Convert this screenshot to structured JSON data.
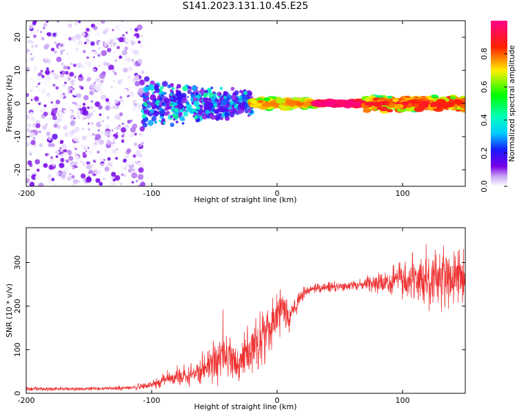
{
  "title": "S141.2023.131.10.45.E25",
  "colors": {
    "frame": "#000000",
    "snr_line": "#ee3333",
    "background": "#ffffff"
  },
  "chart_data": [
    {
      "type": "heatmap",
      "xlabel": "Height of straight line (km)",
      "ylabel": "Frequency (Hz)",
      "xlim": [
        -200,
        150
      ],
      "ylim": [
        -25,
        25
      ],
      "x_ticks": [
        "-200",
        "-100",
        "0",
        "100"
      ],
      "y_ticks": [
        "20",
        "10",
        "0",
        "-10",
        "-20"
      ],
      "colorbar": {
        "label": "Normalized spectral amplitude",
        "range": [
          0,
          1
        ],
        "ticks": [
          "0.0",
          "0.2",
          "0.4",
          "0.6",
          "0.8"
        ],
        "colormap": "rainbow (white, purple, blue, cyan, green, yellow, red, magenta)"
      },
      "regions": [
        {
          "x_range": [
            -200,
            -107
          ],
          "freq_range": [
            -25,
            25
          ],
          "amplitude": [
            0.0,
            0.15
          ],
          "pattern": "broadband speckle"
        },
        {
          "x_range": [
            -107,
            -20
          ],
          "freq_range": [
            -8,
            8
          ],
          "amplitude": [
            0.1,
            0.45
          ],
          "pattern": "clustered blobs narrowing toward 0 Hz"
        },
        {
          "x_range": [
            -20,
            30
          ],
          "freq_range": [
            -2,
            2
          ],
          "amplitude": [
            0.3,
            0.8
          ],
          "pattern": "narrow band near 0 Hz"
        },
        {
          "x_range": [
            30,
            70
          ],
          "freq_range": [
            -1,
            1
          ],
          "amplitude": [
            0.8,
            1.0
          ],
          "pattern": "peak line at 0 Hz"
        },
        {
          "x_range": [
            70,
            150
          ],
          "freq_range": [
            -2.5,
            2.5
          ],
          "amplitude": [
            0.3,
            0.9
          ],
          "pattern": "narrow band with red spots"
        }
      ]
    },
    {
      "type": "line",
      "xlabel": "Height of straight line (km)",
      "ylabel": "SNR (10 * v/v)",
      "xlim": [
        -200,
        150
      ],
      "ylim": [
        0,
        380
      ],
      "x_ticks": [
        "-200",
        "-100",
        "0",
        "100"
      ],
      "y_ticks": [
        "0",
        "100",
        "200",
        "300"
      ],
      "series": [
        {
          "x": [
            -200,
            -180,
            -160,
            -140,
            -120,
            -100,
            -90,
            -80,
            -70,
            -60,
            -50,
            -45,
            -40,
            -35,
            -30,
            -25,
            -20,
            -15,
            -10,
            -5,
            0,
            5,
            10,
            15,
            20,
            25,
            30,
            40,
            50,
            60,
            70,
            80,
            90,
            100,
            110,
            120,
            130,
            140,
            150
          ],
          "mean": [
            10,
            10,
            10,
            11,
            12,
            18,
            30,
            40,
            40,
            55,
            80,
            90,
            85,
            70,
            60,
            90,
            110,
            120,
            130,
            150,
            180,
            200,
            170,
            200,
            225,
            235,
            240,
            243,
            245,
            247,
            250,
            252,
            255,
            258,
            262,
            265,
            265,
            262,
            260
          ],
          "noise": [
            4,
            4,
            4,
            4,
            4,
            8,
            12,
            18,
            20,
            30,
            45,
            55,
            50,
            40,
            35,
            45,
            55,
            55,
            60,
            60,
            50,
            45,
            30,
            20,
            12,
            10,
            10,
            10,
            10,
            10,
            12,
            18,
            25,
            35,
            50,
            60,
            60,
            55,
            50
          ]
        }
      ]
    }
  ]
}
